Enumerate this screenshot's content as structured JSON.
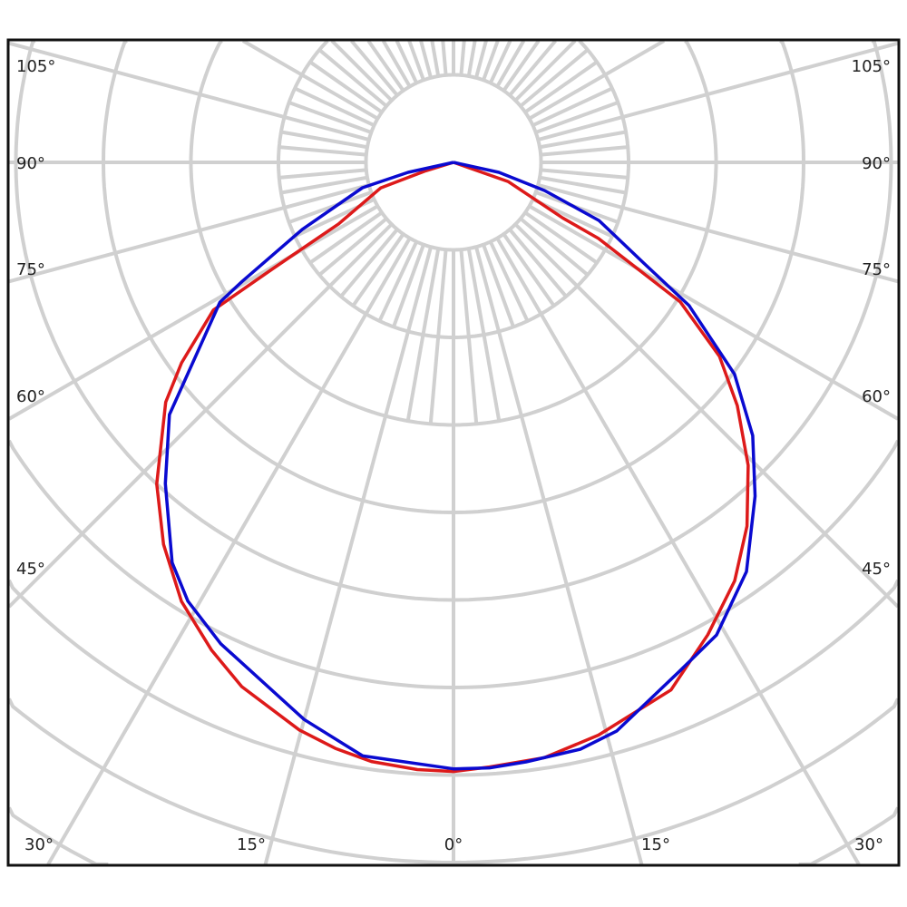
{
  "chart_data": {
    "type": "polar-line",
    "title": "",
    "angle_unit": "degrees",
    "angle_zero": "down",
    "grid": true,
    "radial_rings_unit": "grid ring",
    "angle_labels": {
      "left": [
        "105°",
        "90°",
        "75°",
        "60°",
        "45°"
      ],
      "right": [
        "105°",
        "90°",
        "75°",
        "60°",
        "45°"
      ],
      "bottom": [
        "30°",
        "15°",
        "0°",
        "15°",
        "30°"
      ]
    },
    "series": [
      {
        "color": "#dd1a1a",
        "left": [
          [
            0,
            6.96
          ],
          [
            3.4,
            6.95
          ],
          [
            7.8,
            6.91
          ],
          [
            11.4,
            6.83
          ],
          [
            15.2,
            6.72
          ],
          [
            22,
            6.46
          ],
          [
            26.4,
            6.22
          ],
          [
            31.8,
            5.9
          ],
          [
            37.2,
            5.48
          ],
          [
            42.7,
            5.0
          ],
          [
            50.2,
            4.28
          ],
          [
            53.6,
            3.86
          ],
          [
            58.4,
            3.22
          ],
          [
            59.5,
            2.4
          ],
          [
            61.8,
            1.49
          ],
          [
            70.7,
            0.88
          ],
          [
            73,
            0.33
          ],
          [
            75,
            0
          ]
        ],
        "right": [
          [
            0,
            6.96
          ],
          [
            3.4,
            6.92
          ],
          [
            8.7,
            6.88
          ],
          [
            14.2,
            6.75
          ],
          [
            22.4,
            6.52
          ],
          [
            28.3,
            6.13
          ],
          [
            33.9,
            5.76
          ],
          [
            38.9,
            5.34
          ],
          [
            44.2,
            4.83
          ],
          [
            49.4,
            4.27
          ],
          [
            53.9,
            3.76
          ],
          [
            58.4,
            3.04
          ],
          [
            62.3,
            1.87
          ],
          [
            63,
            1.4
          ],
          [
            70.7,
            0.66
          ],
          [
            73,
            0
          ]
        ]
      },
      {
        "color": "#0a0ad0",
        "left": [
          [
            0,
            6.93
          ],
          [
            8.7,
            6.86
          ],
          [
            15,
            6.59
          ],
          [
            25.8,
            6.11
          ],
          [
            31.2,
            5.86
          ],
          [
            35.1,
            5.59
          ],
          [
            41.9,
            4.93
          ],
          [
            48.4,
            4.34
          ],
          [
            50.4,
            4.03
          ],
          [
            59.1,
            3.11
          ],
          [
            60.6,
            2.77
          ],
          [
            66.1,
            1.89
          ],
          [
            74.4,
            1.08
          ],
          [
            77.6,
            0.53
          ],
          [
            80,
            0
          ]
        ],
        "right": [
          [
            0,
            6.93
          ],
          [
            3.4,
            6.93
          ],
          [
            6.9,
            6.9
          ],
          [
            12.2,
            6.86
          ],
          [
            16,
            6.76
          ],
          [
            24,
            6.36
          ],
          [
            29.1,
            6.18
          ],
          [
            35.6,
            5.75
          ],
          [
            42.1,
            5.14
          ],
          [
            47.6,
            4.63
          ],
          [
            53,
            4.02
          ],
          [
            58.7,
            3.15
          ],
          [
            62.1,
            2.46
          ],
          [
            68.2,
            1.79
          ],
          [
            72.8,
            1.09
          ],
          [
            77.6,
            0.53
          ],
          [
            80,
            0
          ]
        ]
      }
    ]
  }
}
